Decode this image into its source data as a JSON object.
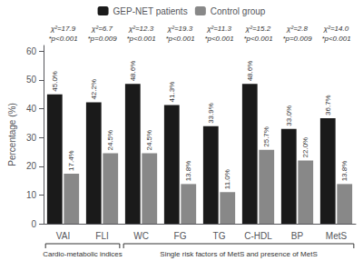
{
  "chart_data": {
    "type": "bar",
    "ylabel": "Percentage (%)",
    "categories": [
      "VAI",
      "FLI",
      "WC",
      "FG",
      "TG",
      "C-HDL",
      "BP",
      "MetS"
    ],
    "series": [
      {
        "name": "GEP-NET patients",
        "color": "#1a1a1a",
        "values": [
          45.0,
          42.2,
          48.6,
          41.3,
          33.9,
          48.6,
          33.0,
          36.7
        ],
        "value_labels": [
          "45.0%",
          "42.2%",
          "48.6%",
          "41.3%",
          "33.9%",
          "48.6%",
          "33.0%",
          "36.7%"
        ]
      },
      {
        "name": "Control group",
        "color": "#888888",
        "values": [
          17.4,
          24.5,
          24.5,
          13.8,
          11.0,
          25.7,
          22.0,
          13.8
        ],
        "value_labels": [
          "17.4%",
          "24.5%",
          "24.5%",
          "13.8%",
          "11.0%",
          "25.7%",
          "22.0%",
          "13.8%"
        ]
      }
    ],
    "ylim": [
      0,
      62
    ],
    "yticks": [
      0,
      10,
      20,
      30,
      40,
      50,
      60
    ],
    "grid": false,
    "legend": "top",
    "data_labels": true,
    "annotations": [
      {
        "category": "VAI",
        "text": "χ²=17.9"
      },
      {
        "category": "VAI",
        "text": "*p<0.001"
      },
      {
        "category": "FLI",
        "text": "χ²=6.7"
      },
      {
        "category": "FLI",
        "text": "*p=0.009"
      },
      {
        "category": "WC",
        "text": "χ²=12.3"
      },
      {
        "category": "WC",
        "text": "*p<0.001"
      },
      {
        "category": "FG",
        "text": "χ²=19.3"
      },
      {
        "category": "FG",
        "text": "*p<0.001"
      },
      {
        "category": "TG",
        "text": "χ²=11.3"
      },
      {
        "category": "TG",
        "text": "*p<0.001"
      },
      {
        "category": "C-HDL",
        "text": "χ²=15.2"
      },
      {
        "category": "C-HDL",
        "text": "*p<0.001"
      },
      {
        "category": "BP",
        "text": "χ²=2.8"
      },
      {
        "category": "BP",
        "text": "*p=0.009"
      },
      {
        "category": "MetS",
        "text": "χ²=14.0"
      },
      {
        "category": "MetS",
        "text": "*p<0.001"
      },
      {
        "categories": [
          "VAI",
          "FLI"
        ],
        "text": "Cardio-metabolic indices"
      },
      {
        "categories": [
          "WC",
          "MetS"
        ],
        "text": "Single risk factors of MetS and presence of MetS"
      }
    ]
  }
}
